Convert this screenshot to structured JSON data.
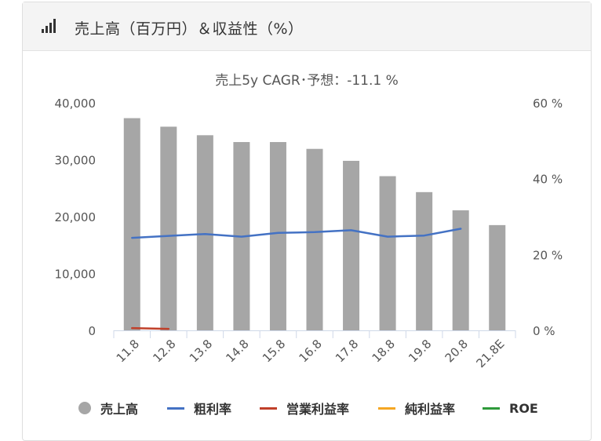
{
  "header": {
    "title": "売上高（百万円）＆収益性（%）",
    "icon": "bar-chart-signal-icon"
  },
  "chart_data": {
    "type": "bar",
    "title": "売上5y CAGR･予想：-11.1 %",
    "categories": [
      "11.8",
      "12.8",
      "13.8",
      "14.8",
      "15.8",
      "16.8",
      "17.8",
      "18.8",
      "19.8",
      "20.8",
      "21.8E"
    ],
    "y_left": {
      "min": 0,
      "max": 40000,
      "ticks": [
        "0",
        "10,000",
        "20,000",
        "30,000",
        "40,000"
      ],
      "tick_values": [
        0,
        10000,
        20000,
        30000,
        40000
      ]
    },
    "y_right": {
      "min": 0,
      "max": 60,
      "ticks": [
        "0 %",
        "20 %",
        "40 %",
        "60 %"
      ],
      "tick_values": [
        0,
        20,
        40,
        60
      ]
    },
    "series": [
      {
        "name": "売上高",
        "kind": "bar",
        "axis": "left",
        "color": "#a6a6a6",
        "values": [
          37300,
          35800,
          34300,
          33100,
          33100,
          31900,
          29800,
          27100,
          24300,
          21100,
          18500
        ]
      },
      {
        "name": "粗利率",
        "kind": "line",
        "axis": "right",
        "color": "#4472c4",
        "values": [
          24.4,
          24.9,
          25.4,
          24.7,
          25.7,
          25.9,
          26.4,
          24.7,
          25.0,
          26.8,
          null
        ]
      },
      {
        "name": "営業利益率",
        "kind": "line",
        "axis": "right",
        "color": "#c0402a",
        "values": [
          0.6,
          0.4,
          null,
          null,
          null,
          null,
          null,
          null,
          null,
          null,
          null
        ]
      },
      {
        "name": "純利益率",
        "kind": "line",
        "axis": "right",
        "color": "#f5a623",
        "values": [
          null,
          null,
          null,
          null,
          null,
          null,
          null,
          null,
          null,
          null,
          null
        ]
      },
      {
        "name": "ROE",
        "kind": "line",
        "axis": "right",
        "color": "#2e9a3a",
        "values": [
          null,
          null,
          null,
          null,
          null,
          null,
          null,
          null,
          null,
          null,
          null
        ]
      }
    ],
    "legend_position": "bottom",
    "grid": false
  }
}
